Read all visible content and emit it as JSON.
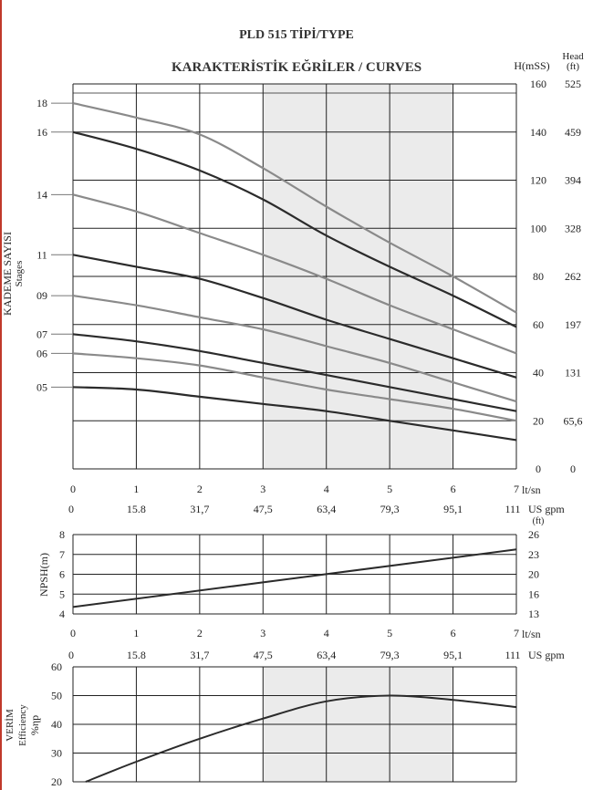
{
  "header": {
    "type_label": "PLD 515 TİPİ/TYPE",
    "curves_title": "KARAKTERİSTİK EĞRİLER / CURVES"
  },
  "colors": {
    "dark_curve": "#2b2b2b",
    "light_curve": "#8a8a8a",
    "shaded_zone": "#ebebeb",
    "grid": "#222222",
    "left_border": "#c0392b"
  },
  "chart_data": [
    {
      "type": "line",
      "title": "KARAKTERİSTİK EĞRİLER / CURVES",
      "xlabel": "lt/sn",
      "x2label": "US gpm",
      "ylabel": "H(mSS)",
      "y2label": "Head (ft)",
      "side_label": "KADEME SAYISI",
      "side_sublabel": "Stages",
      "xlim": [
        0,
        7
      ],
      "ylim": [
        0,
        160
      ],
      "x_ticks": [
        "0",
        "1",
        "2",
        "3",
        "4",
        "5",
        "6",
        "7"
      ],
      "x2_ticks": [
        "0",
        "15.8",
        "31,7",
        "47,5",
        "63,4",
        "79,3",
        "95,1",
        "111"
      ],
      "y_ticks": [
        "0",
        "20",
        "40",
        "60",
        "80",
        "100",
        "120",
        "140",
        "160"
      ],
      "y2_ticks": [
        "0",
        "65,6",
        "131",
        "197",
        "262",
        "328",
        "394",
        "459",
        "525"
      ],
      "shaded_x": [
        3,
        6
      ],
      "grid": true,
      "x": [
        0,
        1,
        2,
        3,
        4,
        5,
        6,
        7
      ],
      "series": [
        {
          "name": "18",
          "style": "light",
          "values": [
            152,
            146,
            139,
            125,
            109,
            94,
            80,
            65
          ]
        },
        {
          "name": "16",
          "style": "dark",
          "values": [
            140,
            133,
            124,
            112,
            97,
            84,
            72,
            59
          ]
        },
        {
          "name": "14",
          "style": "light",
          "values": [
            114,
            107,
            98,
            89,
            79,
            68,
            58,
            48
          ]
        },
        {
          "name": "11",
          "style": "dark",
          "values": [
            89,
            84,
            79,
            71,
            62,
            54,
            46,
            38
          ]
        },
        {
          "name": "09",
          "style": "light",
          "values": [
            72,
            68,
            63,
            58,
            51,
            44,
            36,
            28
          ]
        },
        {
          "name": "07",
          "style": "dark",
          "values": [
            56,
            53,
            49,
            44,
            39,
            34,
            29,
            24
          ]
        },
        {
          "name": "06",
          "style": "light",
          "values": [
            48,
            46,
            43,
            38,
            33,
            29,
            25,
            20
          ]
        },
        {
          "name": "05",
          "style": "dark",
          "values": [
            34,
            33,
            30,
            27,
            24,
            20,
            16,
            12
          ]
        }
      ]
    },
    {
      "type": "line",
      "xlabel": "lt/sn",
      "x2label": "US gpm",
      "ylabel": "NPSH(m)",
      "y2label": "(ft)",
      "xlim": [
        0,
        7
      ],
      "ylim": [
        4,
        8
      ],
      "x_ticks": [
        "0",
        "1",
        "2",
        "3",
        "4",
        "5",
        "6",
        "7"
      ],
      "x2_ticks": [
        "0",
        "15.8",
        "31,7",
        "47,5",
        "63,4",
        "79,3",
        "95,1",
        "111"
      ],
      "y_ticks": [
        "4",
        "5",
        "6",
        "7",
        "8"
      ],
      "y2_ticks": [
        "13",
        "16",
        "20",
        "23",
        "26"
      ],
      "grid": true,
      "x": [
        0,
        7
      ],
      "series": [
        {
          "values": [
            4.35,
            7.25
          ]
        }
      ]
    },
    {
      "type": "line",
      "ylabel": "%ηp",
      "side_label": "VERİM",
      "side_sublabel": "Efficiency",
      "xlim": [
        0,
        7
      ],
      "ylim": [
        20,
        60
      ],
      "y_ticks": [
        "20",
        "30",
        "40",
        "50",
        "60"
      ],
      "shaded_x": [
        3,
        6
      ],
      "grid": true,
      "x": [
        0.2,
        1,
        2,
        3,
        4,
        5,
        6,
        7
      ],
      "series": [
        {
          "values": [
            20,
            27,
            35,
            42,
            48,
            50,
            48.5,
            46
          ]
        }
      ]
    }
  ]
}
